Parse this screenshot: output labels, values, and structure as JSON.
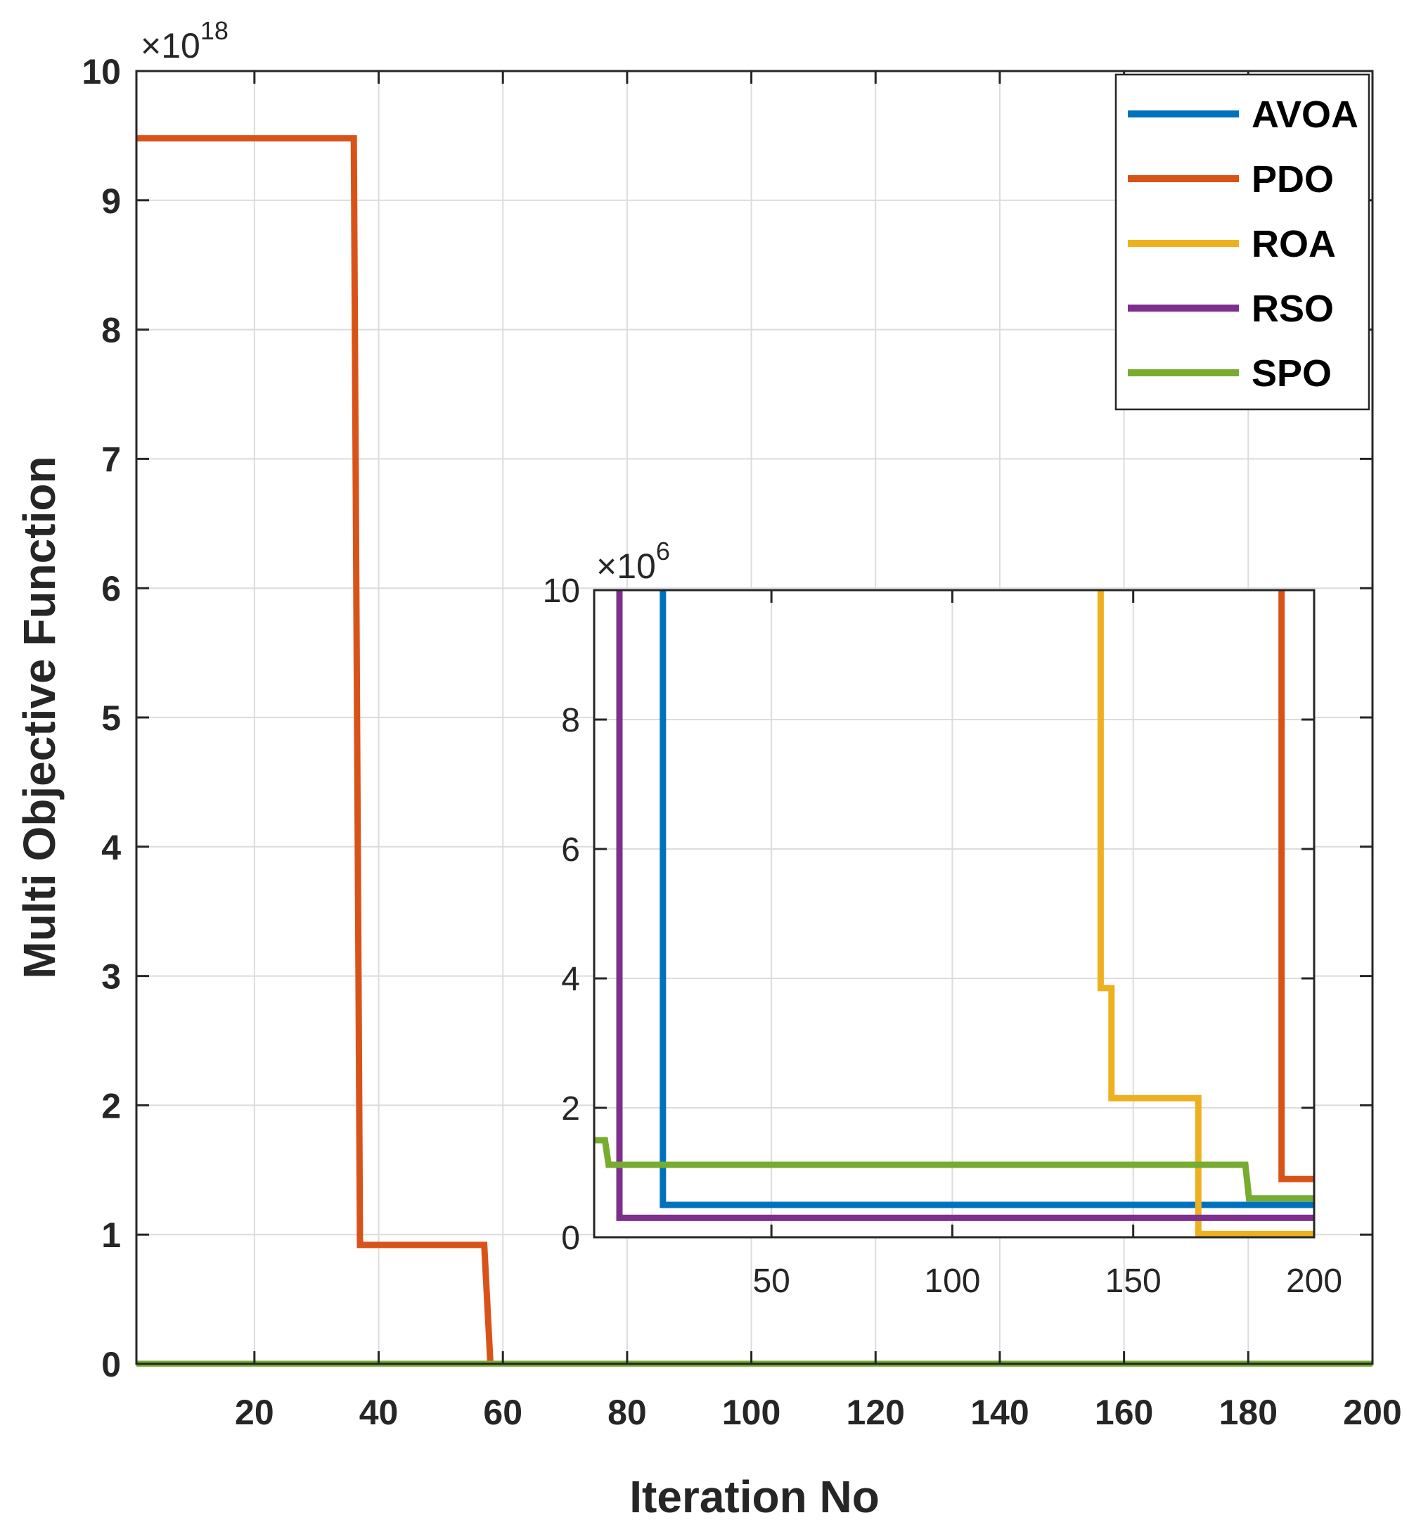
{
  "chart_data": [
    {
      "type": "line",
      "role": "main",
      "xlabel": "Iteration No",
      "ylabel": "Multi Objective Function",
      "y_exponent_base": "×10",
      "y_exponent": "18",
      "xlim": [
        1,
        200
      ],
      "ylim": [
        0,
        10
      ],
      "xticks": [
        20,
        40,
        60,
        80,
        100,
        120,
        140,
        160,
        180,
        200
      ],
      "yticks": [
        0,
        1,
        2,
        3,
        4,
        5,
        6,
        7,
        8,
        9,
        10
      ],
      "grid": true,
      "legend_position": "top-right",
      "legend": [
        "AVOA",
        "PDO",
        "ROA",
        "RSO",
        "SPO"
      ],
      "series": [
        {
          "name": "AVOA",
          "color": "#0072BD",
          "x": [
            1,
            200
          ],
          "y": [
            0,
            0
          ]
        },
        {
          "name": "PDO",
          "color": "#D95319",
          "x": [
            1,
            36,
            37,
            57,
            58,
            200
          ],
          "y": [
            9.48,
            9.48,
            0.92,
            0.92,
            0,
            0
          ]
        },
        {
          "name": "ROA",
          "color": "#EDB120",
          "x": [
            1,
            200
          ],
          "y": [
            0,
            0
          ]
        },
        {
          "name": "RSO",
          "color": "#7E2F8E",
          "x": [
            1,
            200
          ],
          "y": [
            0,
            0
          ]
        },
        {
          "name": "SPO",
          "color": "#77AC30",
          "x": [
            1,
            200
          ],
          "y": [
            0,
            0
          ]
        }
      ]
    },
    {
      "type": "line",
      "role": "inset",
      "y_exponent_base": "×10",
      "y_exponent": "6",
      "xlim": [
        1,
        200
      ],
      "ylim": [
        0,
        10
      ],
      "xticks": [
        50,
        100,
        150,
        200
      ],
      "yticks": [
        0,
        2,
        4,
        6,
        8,
        10
      ],
      "grid": true,
      "series": [
        {
          "name": "AVOA",
          "color": "#0072BD",
          "x": [
            20,
            20,
            200
          ],
          "y": [
            10,
            0.5,
            0.5
          ]
        },
        {
          "name": "PDO",
          "color": "#D95319",
          "x": [
            191,
            191,
            200
          ],
          "y": [
            10,
            0.9,
            0.9
          ]
        },
        {
          "name": "ROA",
          "color": "#EDB120",
          "x": [
            141,
            141,
            144,
            144,
            168,
            168,
            200
          ],
          "y": [
            10,
            3.85,
            3.85,
            2.15,
            2.15,
            0.05,
            0.05
          ]
        },
        {
          "name": "RSO",
          "color": "#7E2F8E",
          "x": [
            8,
            8,
            200
          ],
          "y": [
            10,
            0.3,
            0.3
          ]
        },
        {
          "name": "SPO",
          "color": "#77AC30",
          "x": [
            1,
            4,
            5,
            181,
            182,
            200
          ],
          "y": [
            1.5,
            1.5,
            1.12,
            1.12,
            0.6,
            0.6
          ]
        }
      ]
    }
  ]
}
